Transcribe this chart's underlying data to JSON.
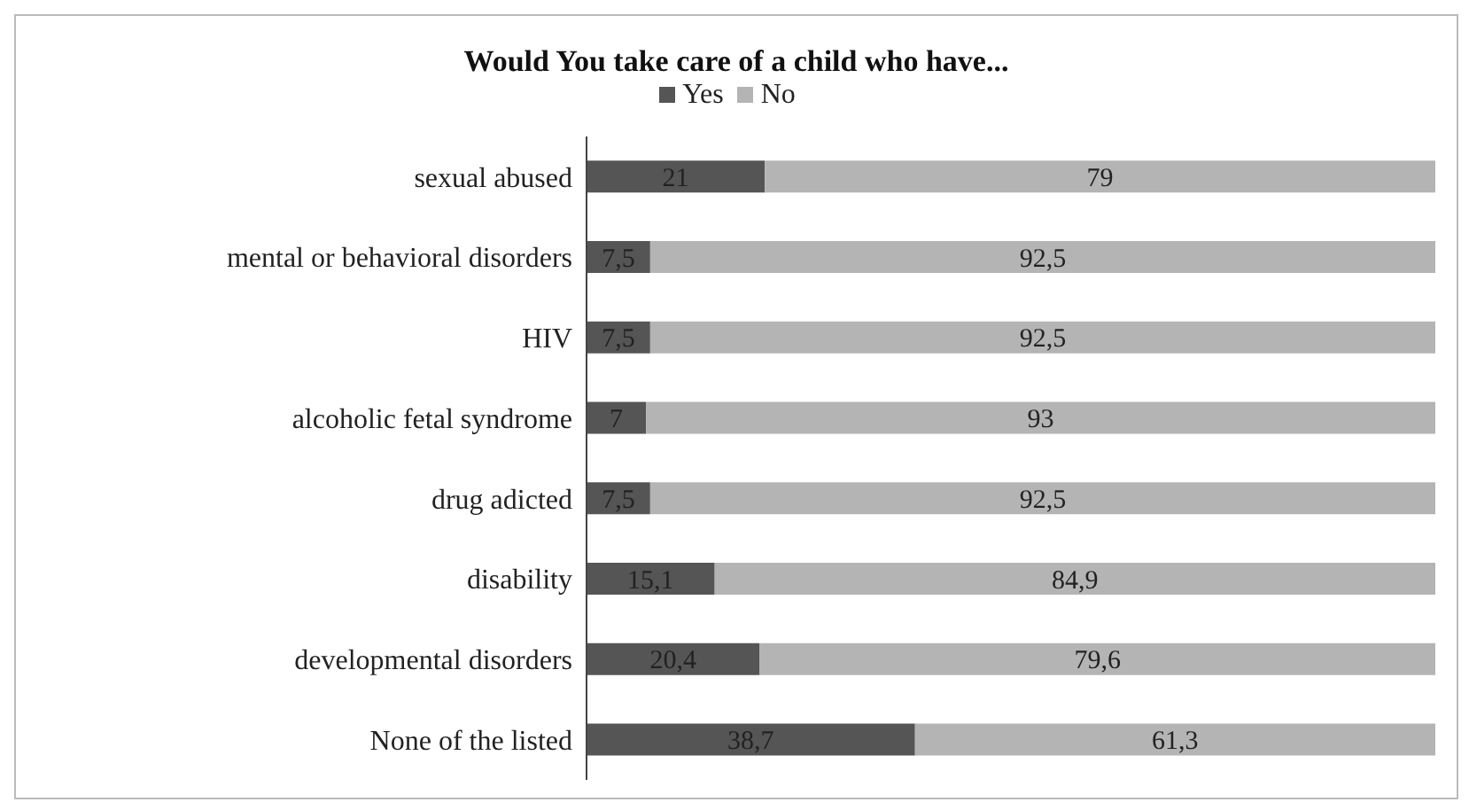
{
  "chart_data": {
    "type": "bar",
    "orientation": "horizontal",
    "stacked": true,
    "title": "Would You take care of a child who have...",
    "legend": "top",
    "tick_labels": "y",
    "xlim": [
      0,
      100
    ],
    "categories": [
      "sexual abused",
      "mental or behavioral disorders",
      "HIV",
      "alcoholic fetal syndrome",
      "drug adicted",
      "disability",
      "developmental disorders",
      "None of the listed"
    ],
    "series": [
      {
        "name": "Yes",
        "color": "#555555",
        "values": [
          21,
          7.5,
          7.5,
          7,
          7.5,
          15.1,
          20.4,
          38.7
        ],
        "value_labels": [
          "21",
          "7,5",
          "7,5",
          "7",
          "7,5",
          "15,1",
          "20,4",
          "38,7"
        ]
      },
      {
        "name": "No",
        "color": "#b4b4b4",
        "values": [
          79,
          92.5,
          92.5,
          93,
          92.5,
          84.9,
          79.6,
          61.3
        ],
        "value_labels": [
          "79",
          "92,5",
          "92,5",
          "93",
          "92,5",
          "84,9",
          "79,6",
          "61,3"
        ]
      }
    ]
  }
}
